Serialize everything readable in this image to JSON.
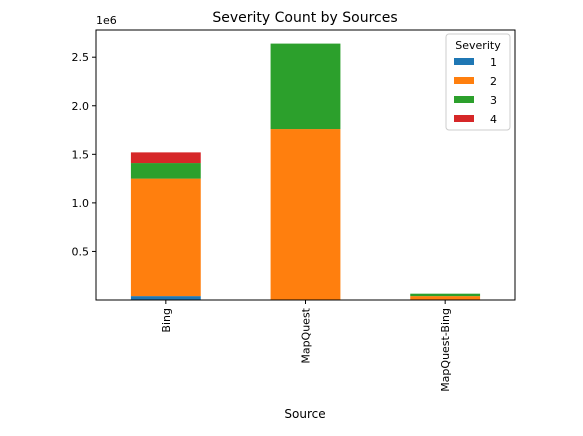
{
  "chart_data": {
    "type": "bar",
    "stacked": true,
    "title": "Severity Count by Sources",
    "xlabel": "Source",
    "ylabel": "",
    "offset_label": "1e6",
    "categories": [
      "Bing",
      "MapQuest",
      "MapQuest-Bing"
    ],
    "yticks": [
      0.5,
      1.0,
      1.5,
      2.0,
      2.5
    ],
    "ytick_labels": [
      "0.5",
      "1.0",
      "1.5",
      "2.0",
      "2.5"
    ],
    "ylim": [
      0.0,
      2.78
    ],
    "value_scale": 1000000,
    "legend": {
      "title": "Severity",
      "placement": "upper right"
    },
    "series": [
      {
        "name": "1",
        "color": "#1f77b4",
        "values": [
          0.04,
          0.0,
          0.0
        ]
      },
      {
        "name": "2",
        "color": "#ff7f0e",
        "values": [
          1.21,
          1.76,
          0.04
        ]
      },
      {
        "name": "3",
        "color": "#2ca02c",
        "values": [
          0.16,
          0.88,
          0.025
        ]
      },
      {
        "name": "4",
        "color": "#d62728",
        "values": [
          0.11,
          0.0,
          0.0
        ]
      }
    ],
    "grid": false
  }
}
